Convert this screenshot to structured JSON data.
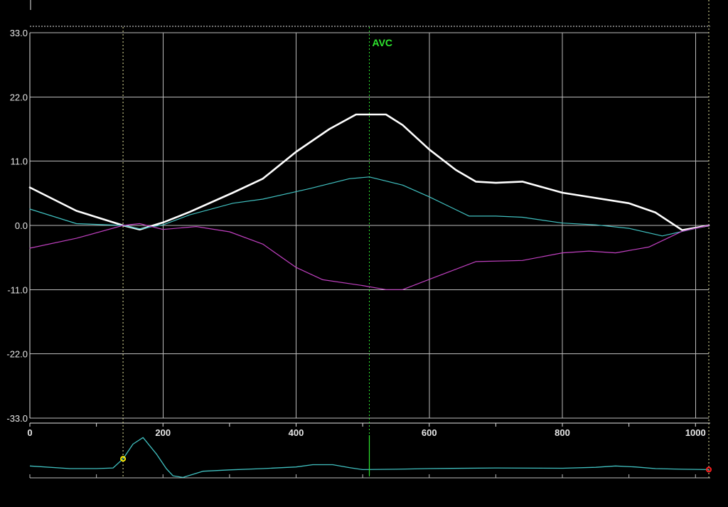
{
  "chart_data": {
    "type": "line",
    "xlim": [
      0,
      1020
    ],
    "ylim": [
      -33,
      33
    ],
    "y_ticks": [
      "33.0",
      "22.0",
      "11.0",
      "0.0",
      "-11.0",
      "-22.0",
      "-33.0"
    ],
    "y_tick_values": [
      33,
      22,
      11,
      0,
      -11,
      -22,
      -33
    ],
    "x_ticks": [
      "0",
      "200",
      "400",
      "600",
      "800",
      "1000"
    ],
    "x_tick_values": [
      0,
      200,
      400,
      600,
      800,
      1000
    ],
    "grid": true,
    "vertical_markers": [
      {
        "x": 140,
        "label": ""
      },
      {
        "x": 510,
        "label": "AVC"
      },
      {
        "x": 1020,
        "label": ""
      }
    ],
    "series": [
      {
        "color": "#ffffff",
        "x": [
          0,
          70,
          140,
          165,
          200,
          240,
          305,
          350,
          400,
          450,
          490,
          535,
          560,
          600,
          640,
          670,
          700,
          740,
          800,
          900,
          940,
          980,
          1020
        ],
        "values": [
          6.5,
          2.5,
          0.0,
          -0.7,
          0.5,
          2.3,
          5.6,
          8.0,
          12.6,
          16.5,
          19.0,
          19.0,
          17.2,
          13.0,
          9.5,
          7.5,
          7.3,
          7.5,
          5.6,
          3.8,
          2.2,
          -0.8,
          0.0
        ]
      },
      {
        "color": "#40c0c0",
        "x": [
          0,
          70,
          140,
          165,
          200,
          240,
          305,
          350,
          420,
          480,
          510,
          560,
          600,
          660,
          700,
          740,
          800,
          850,
          900,
          950,
          1020
        ],
        "values": [
          2.8,
          0.3,
          0.0,
          -0.6,
          0.1,
          1.8,
          3.8,
          4.5,
          6.3,
          8.0,
          8.3,
          6.9,
          4.9,
          1.6,
          1.6,
          1.4,
          0.4,
          0.1,
          -0.5,
          -1.8,
          0.0
        ]
      },
      {
        "color": "#c040c0",
        "x": [
          0,
          70,
          140,
          165,
          200,
          250,
          300,
          350,
          400,
          440,
          500,
          535,
          560,
          610,
          670,
          740,
          800,
          840,
          880,
          930,
          980,
          1020
        ],
        "values": [
          -3.9,
          -2.2,
          0.0,
          0.3,
          -0.7,
          -0.2,
          -1.1,
          -3.2,
          -7.2,
          -9.3,
          -10.3,
          -11.0,
          -11.0,
          -8.8,
          -6.2,
          -6.0,
          -4.7,
          -4.4,
          -4.7,
          -3.7,
          -1.0,
          0.0
        ]
      }
    ],
    "ecg_trace": {
      "color": "#40c0c0",
      "x": [
        0,
        60,
        100,
        125,
        140,
        155,
        170,
        190,
        205,
        215,
        230,
        260,
        300,
        350,
        400,
        425,
        455,
        480,
        500,
        550,
        600,
        700,
        800,
        850,
        880,
        910,
        940,
        980,
        1020
      ],
      "values": [
        0.08,
        0.0,
        0.0,
        0.02,
        0.3,
        0.75,
        0.95,
        0.45,
        0.0,
        -0.22,
        -0.27,
        -0.08,
        -0.04,
        0.0,
        0.05,
        0.12,
        0.12,
        0.03,
        -0.03,
        -0.02,
        0.0,
        0.02,
        0.01,
        0.04,
        0.08,
        0.05,
        0.0,
        -0.02,
        -0.03
      ],
      "points": [
        {
          "x": 140,
          "color": "#ffee00"
        },
        {
          "x": 1020,
          "color": "#ff2020"
        }
      ]
    }
  }
}
